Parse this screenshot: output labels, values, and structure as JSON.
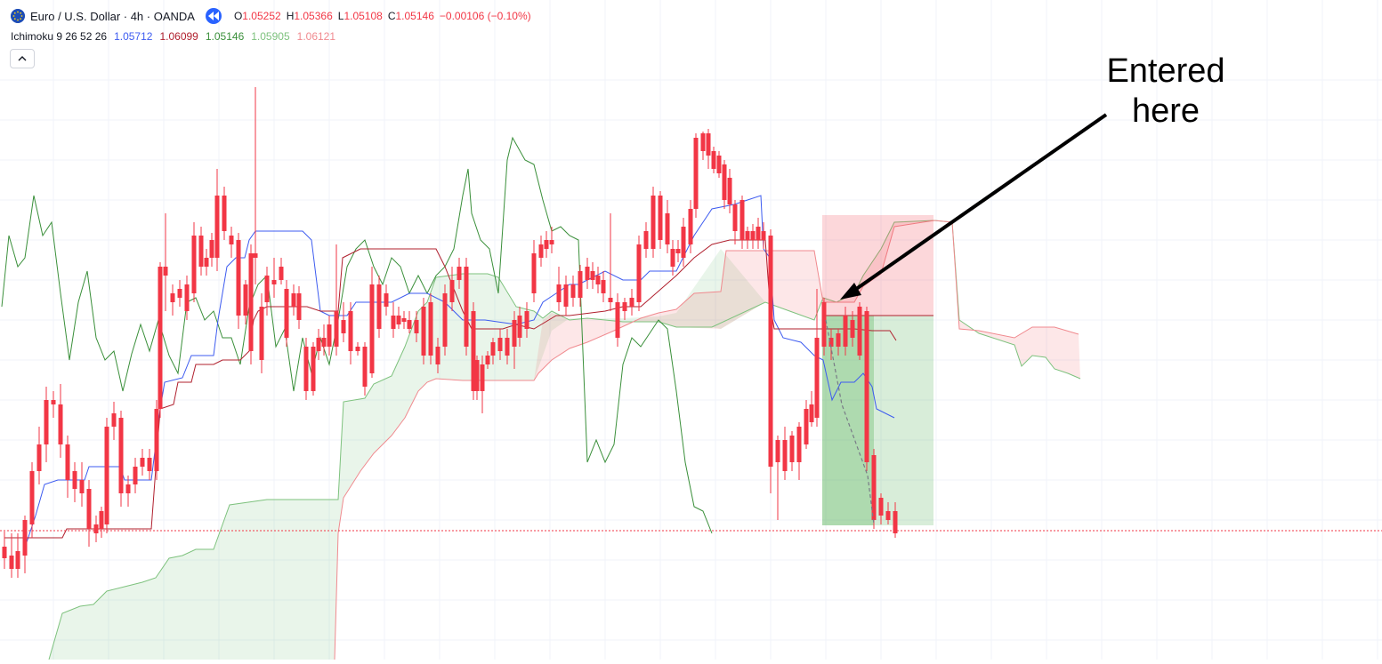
{
  "header": {
    "title": "Euro / U.S. Dollar · 4h · OANDA",
    "ohlc": [
      {
        "key": "O",
        "value": "1.05252"
      },
      {
        "key": "H",
        "value": "1.05366"
      },
      {
        "key": "L",
        "value": "1.05108"
      },
      {
        "key": "C",
        "value": "1.05146"
      }
    ],
    "change": "−0.00106 (−0.10%)"
  },
  "indicator": {
    "name": "Ichimoku 9 26 52 26",
    "values": [
      {
        "value": "1.05712",
        "color": "#3d5bf0"
      },
      {
        "value": "1.06099",
        "color": "#b0202e"
      },
      {
        "value": "1.05146",
        "color": "#3a8f3a"
      },
      {
        "value": "1.05905",
        "color": "#7ec27e"
      },
      {
        "value": "1.06121",
        "color": "#f08a8f"
      }
    ]
  },
  "annotation": {
    "line1": "Entered",
    "line2": "here"
  },
  "colors": {
    "up": "#22ab94",
    "down": "#f23645",
    "conversion": "#3d5bf0",
    "base": "#b0202e",
    "lagging": "#3a8f3a",
    "cloud_bull": "#4caf50",
    "cloud_bear": "#f23645"
  }
}
